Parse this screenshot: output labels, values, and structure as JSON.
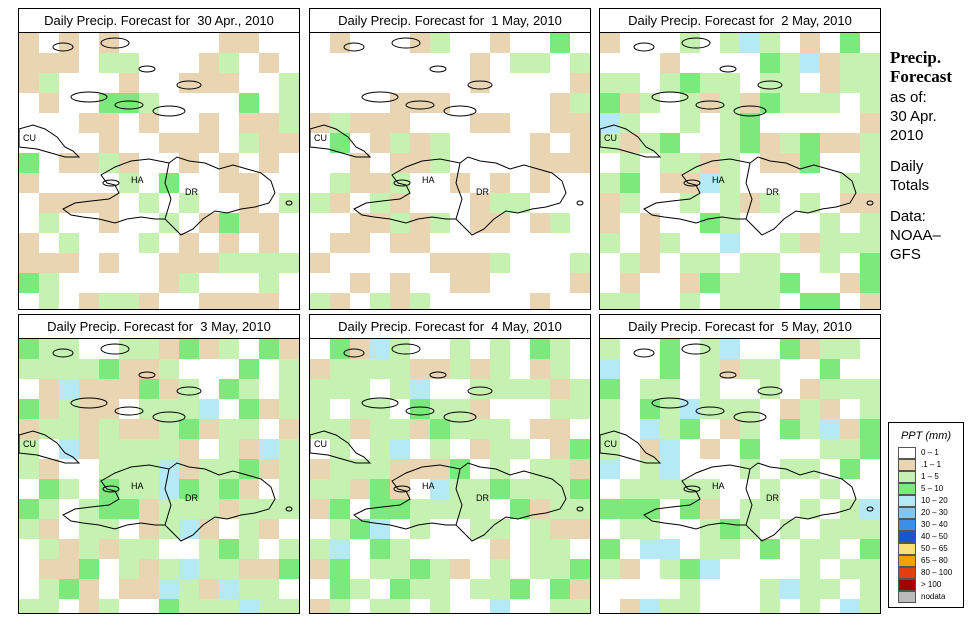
{
  "panels": [
    {
      "title": "Daily Precip. Forecast for  30 Apr., 2010"
    },
    {
      "title": "Daily Precip. Forecast for  1 May, 2010"
    },
    {
      "title": "Daily Precip. Forecast for  2 May, 2010"
    },
    {
      "title": "Daily Precip. Forecast for  3 May, 2010"
    },
    {
      "title": "Daily Precip. Forecast for  4 May, 2010"
    },
    {
      "title": "Daily Precip. Forecast for  5 May, 2010"
    }
  ],
  "map_labels": {
    "cu": "CU",
    "ha": "HA",
    "dr": "DR"
  },
  "side": {
    "title_line1": "Precip.",
    "title_line2": "Forecast",
    "as_of": "as of:",
    "date_line1": "30 Apr.",
    "date_line2": "2010",
    "totals_line1": "Daily",
    "totals_line2": "Totals",
    "data_line1": "Data:",
    "data_line2": "NOAA–",
    "data_line3": "GFS"
  },
  "legend": {
    "title": "PPT (mm)",
    "items": [
      {
        "label": "0 – 1",
        "color": "#ffffff"
      },
      {
        "label": ".1 – 1",
        "color": "#ead5b3"
      },
      {
        "label": "1 – 5",
        "color": "#c5f2b0"
      },
      {
        "label": "5 – 10",
        "color": "#7ce97c"
      },
      {
        "label": "10 – 20",
        "color": "#b5e9f5"
      },
      {
        "label": "20 – 30",
        "color": "#7fc6f0"
      },
      {
        "label": "30 – 40",
        "color": "#3d8ee8"
      },
      {
        "label": "40 – 50",
        "color": "#1a55d0"
      },
      {
        "label": "50 – 65",
        "color": "#f7e07a"
      },
      {
        "label": "65 – 80",
        "color": "#f5a000"
      },
      {
        "label": "80 – 100",
        "color": "#e04010"
      },
      {
        "label": "> 100",
        "color": "#a00000"
      },
      {
        "label": "nodata",
        "color": "#bbbbbb"
      }
    ]
  }
}
